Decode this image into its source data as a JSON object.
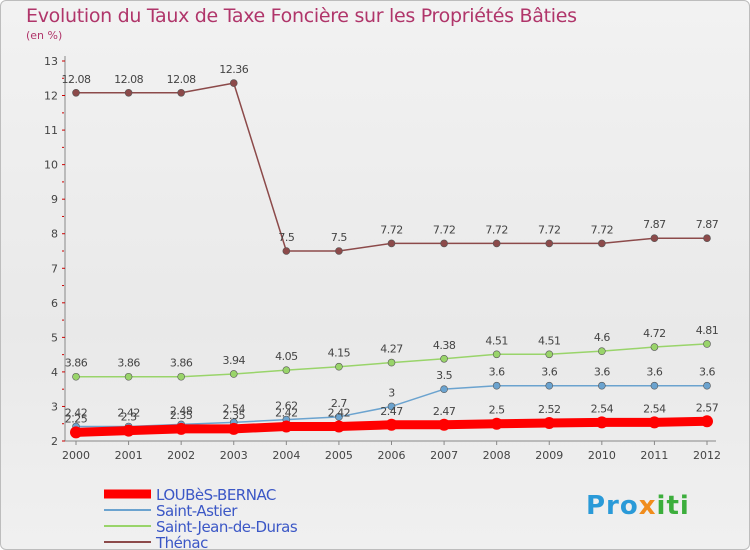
{
  "chart_data": {
    "type": "line",
    "title": "Evolution du Taux de Taxe Foncière sur les Propriétés Bâties",
    "subtitle": "(en %)",
    "x": [
      "2000",
      "2001",
      "2002",
      "2003",
      "2004",
      "2005",
      "2006",
      "2007",
      "2008",
      "2009",
      "2010",
      "2011",
      "2012"
    ],
    "ylim": [
      2,
      13
    ],
    "yticks": [
      "2",
      "3",
      "4",
      "5",
      "6",
      "7",
      "8",
      "9",
      "10",
      "11",
      "12",
      "13"
    ],
    "legend_position": "bottom-left",
    "series": [
      {
        "name": "LOUBèS-BERNAC",
        "color": "#ff0000",
        "values": [
          2.25,
          2.3,
          2.35,
          2.35,
          2.42,
          2.42,
          2.47,
          2.47,
          2.5,
          2.52,
          2.54,
          2.54,
          2.57
        ],
        "labels": [
          "2.25",
          "2.3",
          "2.35",
          "2.35",
          "2.42",
          "2.42",
          "2.47",
          "2.47",
          "2.5",
          "2.52",
          "2.54",
          "2.54",
          "2.57"
        ]
      },
      {
        "name": "Saint-Astier",
        "color": "#6ba3cf",
        "values": [
          2.42,
          2.42,
          2.48,
          2.54,
          2.62,
          2.7,
          3,
          3.5,
          3.6,
          3.6,
          3.6,
          3.6,
          3.6
        ],
        "labels": [
          "2.42",
          "2.42",
          "2.48",
          "2.54",
          "2.62",
          "2.7",
          "3",
          "3.5",
          "3.6",
          "3.6",
          "3.6",
          "3.6",
          "3.6"
        ]
      },
      {
        "name": "Saint-Jean-de-Duras",
        "color": "#99d46a",
        "values": [
          3.86,
          3.86,
          3.86,
          3.94,
          4.05,
          4.15,
          4.27,
          4.38,
          4.51,
          4.51,
          4.6,
          4.72,
          4.81
        ],
        "labels": [
          "3.86",
          "3.86",
          "3.86",
          "3.94",
          "4.05",
          "4.15",
          "4.27",
          "4.38",
          "4.51",
          "4.51",
          "4.6",
          "4.72",
          "4.81"
        ]
      },
      {
        "name": "Thénac",
        "color": "#8c4a4a",
        "values": [
          12.08,
          12.08,
          12.08,
          12.36,
          7.5,
          7.5,
          7.72,
          7.72,
          7.72,
          7.72,
          7.72,
          7.87,
          7.87
        ],
        "labels": [
          "12.08",
          "12.08",
          "12.08",
          "12.36",
          "7.5",
          "7.5",
          "7.72",
          "7.72",
          "7.72",
          "7.72",
          "7.72",
          "7.87",
          "7.87"
        ]
      }
    ],
    "brand": "Prox iti",
    "brand_parts": [
      "Pro",
      "x",
      "iti"
    ]
  }
}
